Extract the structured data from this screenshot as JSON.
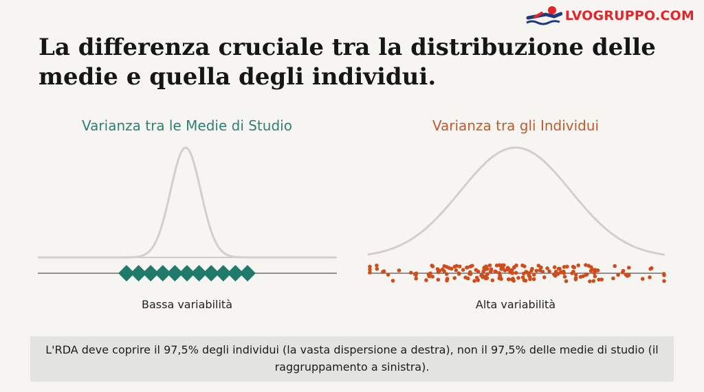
{
  "logo": {
    "text": "LVOGRUPPO.COM"
  },
  "title": "La differenza cruciale tra la distribuzione delle medie e quella degli individui.",
  "left_panel": {
    "title": "Varianza tra le Medie di Studio",
    "caption": "Bassa variabilità",
    "marker_count": 11
  },
  "right_panel": {
    "title": "Varianza tra gli Individui",
    "caption": "Alta variabilità",
    "dot_count": 190
  },
  "note": "L'RDA deve coprire il 97,5% degli individui (la vasta dispersione a destra), non il 97,5% delle medie di studio (il raggruppamento a sinistra).",
  "colors": {
    "teal": "#1f7a6c",
    "orange": "#cf4d1c",
    "curve": "#cfcfcb",
    "axis": "#555555",
    "logo_red": "#e5242a"
  }
}
